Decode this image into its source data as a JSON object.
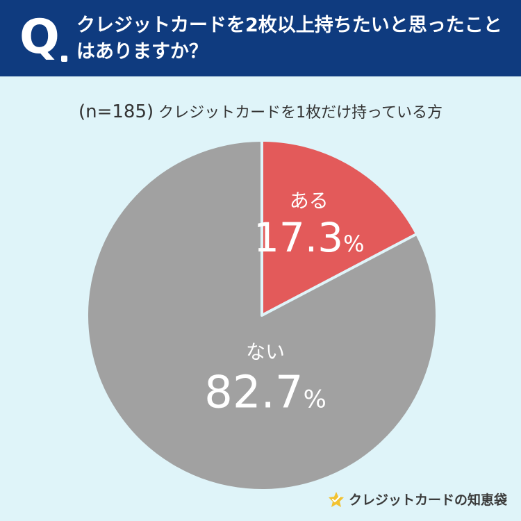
{
  "header": {
    "q_mark": "Q",
    "question": "クレジットカードを2枚以上持ちたいと思ったことはありますか？"
  },
  "subtitle": {
    "n_label": "(n=185)",
    "text": "クレジットカードを1枚だけ持っている方"
  },
  "chart_data": {
    "type": "pie",
    "categories": [
      "ある",
      "ない"
    ],
    "values": [
      17.3,
      82.7
    ],
    "value_labels": [
      "17.3",
      "82.7"
    ],
    "unit": "%",
    "colors": [
      "#e35a5a",
      "#a1a1a1"
    ],
    "start": "12 o'clock",
    "direction": "clockwise",
    "title": "",
    "legend": "none"
  },
  "footer": {
    "logo_text": "クレジットカードの知恵袋",
    "logo_icon": "star-tag-icon",
    "logo_icon_color": "#f2c230"
  },
  "colors": {
    "background": "#dff4f9",
    "header": "#0f3b7f"
  }
}
